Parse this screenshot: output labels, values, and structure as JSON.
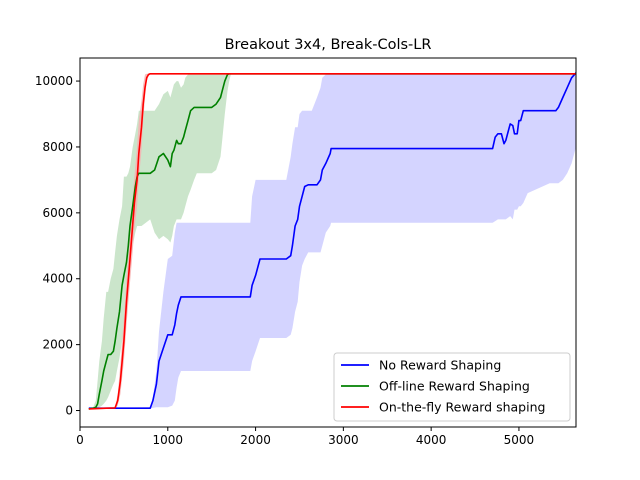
{
  "chart_data": {
    "type": "line",
    "title": "Breakout 3x4, Break-Cols-LR",
    "xlabel": "",
    "ylabel": "",
    "xlim": [
      0,
      5650
    ],
    "ylim": [
      -500,
      10700
    ],
    "xticks": [
      0,
      1000,
      2000,
      3000,
      4000,
      5000
    ],
    "yticks": [
      0,
      2000,
      4000,
      6000,
      8000,
      10000
    ],
    "grid": false,
    "legend_position": "lower-right",
    "series": [
      {
        "name": "No Reward Shaping",
        "color": "#0000ff",
        "band_color": "#ccccff",
        "x": [
          100,
          800,
          830,
          870,
          900,
          950,
          1000,
          1050,
          1080,
          1100,
          1120,
          1150,
          1200,
          1940,
          1960,
          2000,
          2050,
          2100,
          2350,
          2400,
          2420,
          2450,
          2480,
          2500,
          2530,
          2560,
          2600,
          2620,
          2640,
          2700,
          2740,
          2760,
          2800,
          2850,
          2860,
          2900,
          4700,
          4730,
          4760,
          4800,
          4830,
          4850,
          4900,
          4930,
          4950,
          4980,
          5000,
          5020,
          5050,
          5100,
          5350,
          5420,
          5450,
          5500,
          5550,
          5600,
          5650
        ],
        "values": [
          70,
          70,
          300,
          800,
          1500,
          1900,
          2300,
          2300,
          2600,
          2950,
          3200,
          3450,
          3450,
          3450,
          3800,
          4100,
          4600,
          4600,
          4600,
          4700,
          5000,
          5600,
          5800,
          6200,
          6500,
          6800,
          6850,
          6850,
          6850,
          6850,
          7000,
          7300,
          7500,
          7800,
          7950,
          7950,
          7950,
          8300,
          8400,
          8400,
          8100,
          8200,
          8700,
          8650,
          8400,
          8400,
          8800,
          8800,
          9100,
          9100,
          9100,
          9100,
          9200,
          9500,
          9800,
          10100,
          10250
        ],
        "upper": [
          70,
          100,
          400,
          1200,
          2400,
          3600,
          4600,
          4700,
          5400,
          5700,
          5700,
          5700,
          5700,
          5700,
          6500,
          7000,
          7000,
          7000,
          7000,
          7700,
          8100,
          8600,
          8600,
          9000,
          9100,
          9100,
          9100,
          9100,
          9100,
          9500,
          9800,
          10100,
          10200,
          10220,
          10220,
          10220,
          10220,
          10220,
          10220,
          10220,
          10220,
          10220,
          10220,
          10220,
          10220,
          10220,
          10220,
          10220,
          10220,
          10220,
          10220,
          10220,
          10220,
          10220,
          10220,
          10220,
          10220
        ],
        "lower": [
          70,
          70,
          80,
          100,
          100,
          100,
          100,
          150,
          300,
          700,
          1000,
          1200,
          1200,
          1200,
          1500,
          1800,
          2200,
          2200,
          2200,
          2300,
          2500,
          3000,
          3300,
          3900,
          4400,
          4600,
          4800,
          4800,
          4800,
          4800,
          4800,
          5000,
          5400,
          5600,
          5700,
          5700,
          5700,
          5750,
          5800,
          5800,
          5800,
          5800,
          5900,
          5800,
          6100,
          6100,
          6200,
          6200,
          6300,
          6600,
          6900,
          6900,
          6900,
          7000,
          7200,
          7500,
          8000
        ]
      },
      {
        "name": "Off-line Reward Shaping",
        "color": "#008000",
        "band_color": "#c2e0c2",
        "x": [
          100,
          150,
          180,
          200,
          220,
          250,
          270,
          300,
          320,
          350,
          380,
          400,
          420,
          450,
          480,
          500,
          530,
          550,
          570,
          600,
          630,
          650,
          670,
          700,
          750,
          800,
          850,
          900,
          950,
          1000,
          1030,
          1050,
          1070,
          1100,
          1120,
          1150,
          1180,
          1200,
          1230,
          1260,
          1300,
          1330,
          1350,
          1400,
          1450,
          1500,
          1550,
          1600,
          1620,
          1650,
          1680,
          1700,
          1720,
          1800,
          2000,
          5650
        ],
        "values": [
          50,
          70,
          100,
          200,
          500,
          900,
          1200,
          1500,
          1700,
          1700,
          1800,
          2100,
          2500,
          3000,
          3800,
          4100,
          4500,
          5000,
          5600,
          6200,
          6800,
          7100,
          7200,
          7200,
          7200,
          7200,
          7300,
          7700,
          7800,
          7600,
          7400,
          7800,
          7900,
          8200,
          8100,
          8100,
          8300,
          8500,
          8800,
          9100,
          9200,
          9200,
          9200,
          9200,
          9200,
          9200,
          9300,
          9500,
          9700,
          10000,
          10200,
          10220,
          10220,
          10220,
          10220,
          10220
        ],
        "upper": [
          50,
          100,
          300,
          900,
          1500,
          2100,
          2800,
          3600,
          3600,
          4000,
          4300,
          4800,
          5300,
          5800,
          6200,
          7100,
          7100,
          7200,
          7400,
          8000,
          8400,
          8700,
          9100,
          9100,
          9100,
          9100,
          9100,
          9300,
          9600,
          9700,
          9500,
          9700,
          9900,
          10000,
          10000,
          9800,
          9900,
          10100,
          10200,
          10220,
          10220,
          10220,
          10220,
          10220,
          10220,
          10220,
          10220,
          10220,
          10220,
          10220,
          10220,
          10220,
          10220,
          10220,
          10220,
          10220
        ],
        "lower": [
          50,
          50,
          60,
          80,
          100,
          150,
          200,
          300,
          400,
          600,
          800,
          900,
          1200,
          1600,
          2100,
          2500,
          3200,
          4000,
          4500,
          5000,
          5400,
          5600,
          5600,
          5600,
          5700,
          5800,
          5400,
          5200,
          5300,
          5200,
          5100,
          5300,
          5600,
          5800,
          5800,
          5800,
          6000,
          6200,
          6500,
          6700,
          7000,
          7200,
          7200,
          7200,
          7200,
          7200,
          7300,
          7700,
          8200,
          9000,
          9700,
          10000,
          10220,
          10220,
          10220,
          10220
        ]
      },
      {
        "name": "On-the-fly Reward shaping",
        "color": "#ff0000",
        "band_color": "#f7b2b2",
        "x": [
          100,
          300,
          400,
          430,
          460,
          500,
          530,
          560,
          590,
          620,
          650,
          670,
          700,
          720,
          740,
          760,
          780,
          800,
          850,
          5650
        ],
        "values": [
          50,
          70,
          80,
          300,
          900,
          2100,
          3300,
          4300,
          5300,
          6300,
          7000,
          7800,
          8600,
          9300,
          9800,
          10100,
          10200,
          10220,
          10220,
          10220
        ],
        "upper": [
          50,
          80,
          100,
          500,
          1400,
          2800,
          4000,
          5000,
          6100,
          7100,
          8000,
          8800,
          9400,
          9900,
          10200,
          10220,
          10220,
          10220,
          10220,
          10220
        ],
        "lower": [
          50,
          60,
          70,
          150,
          500,
          1500,
          2600,
          3600,
          4500,
          5500,
          6200,
          7000,
          7900,
          8800,
          9500,
          10000,
          10150,
          10200,
          10220,
          10220
        ]
      }
    ]
  }
}
